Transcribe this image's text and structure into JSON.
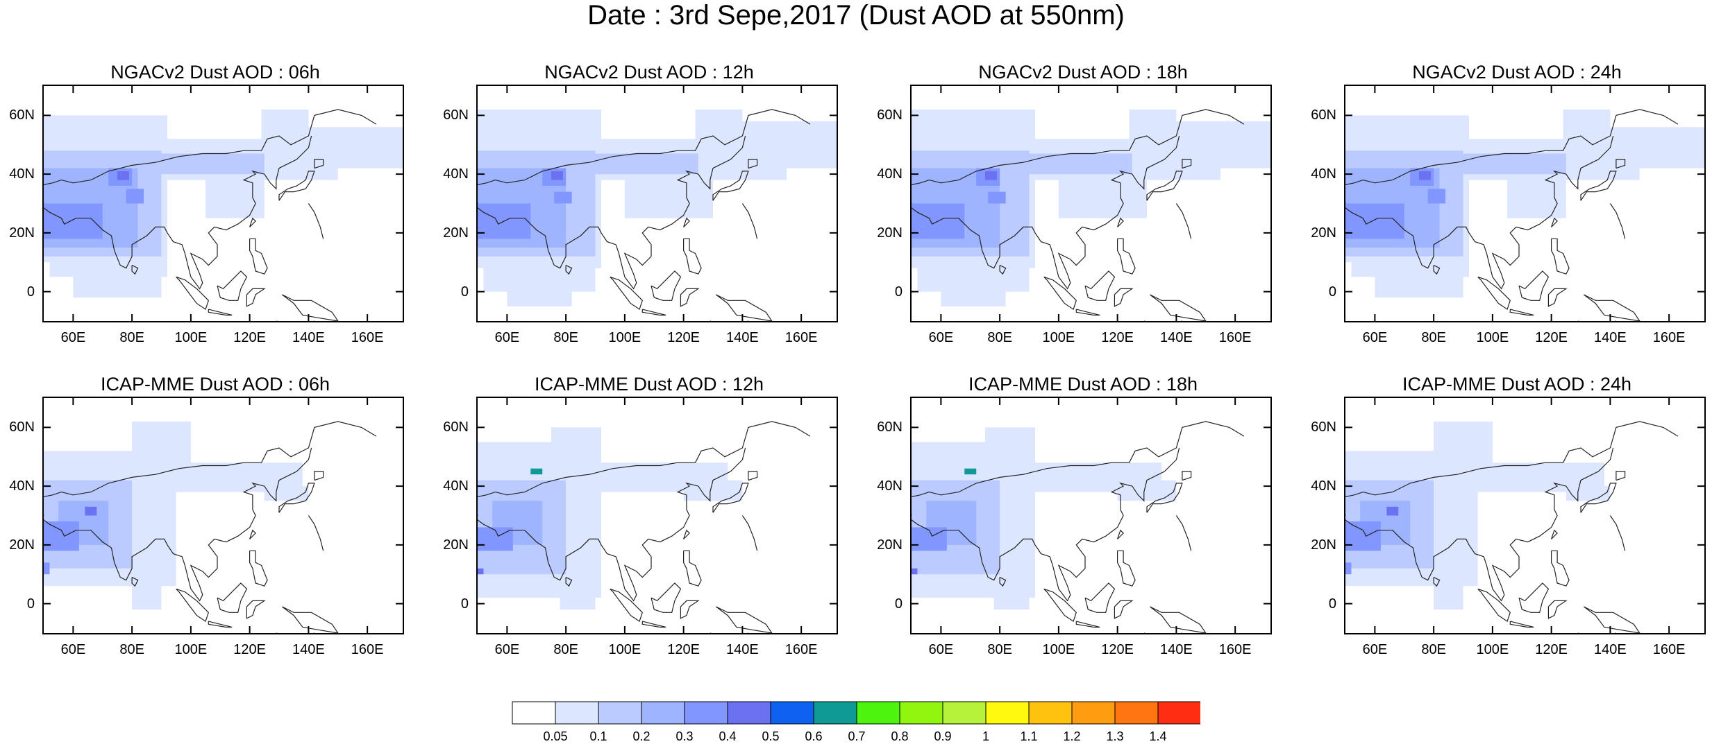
{
  "title": "Date : 3rd Sepe,2017 (Dust AOD at 550nm)",
  "panels": [
    {
      "title": "NGACv2 Dust AOD : 06h",
      "model": "NGACv2",
      "hour": "06h"
    },
    {
      "title": "NGACv2 Dust AOD : 12h",
      "model": "NGACv2",
      "hour": "12h"
    },
    {
      "title": "NGACv2 Dust AOD : 18h",
      "model": "NGACv2",
      "hour": "18h"
    },
    {
      "title": "NGACv2 Dust AOD : 24h",
      "model": "NGACv2",
      "hour": "24h"
    },
    {
      "title": "ICAP-MME Dust AOD : 06h",
      "model": "ICAP-MME",
      "hour": "06h"
    },
    {
      "title": "ICAP-MME Dust AOD : 12h",
      "model": "ICAP-MME",
      "hour": "12h"
    },
    {
      "title": "ICAP-MME Dust AOD : 18h",
      "model": "ICAP-MME",
      "hour": "18h"
    },
    {
      "title": "ICAP-MME Dust AOD : 24h",
      "model": "ICAP-MME",
      "hour": "24h"
    }
  ],
  "axes": {
    "lon_range": [
      50,
      172
    ],
    "lat_range": [
      -10,
      70
    ],
    "lon_ticks": [
      "60E",
      "80E",
      "100E",
      "120E",
      "140E",
      "160E"
    ],
    "lat_ticks": [
      "60N",
      "40N",
      "20N",
      "0"
    ]
  },
  "colorbar": {
    "colors": [
      "#ffffff",
      "#dde6ff",
      "#bccbff",
      "#9fb4ff",
      "#8296ff",
      "#6a72f2",
      "#0f62f0",
      "#0f9a96",
      "#4cf40e",
      "#90f50f",
      "#b6f23a",
      "#fff90f",
      "#ffc20f",
      "#ff9c0f",
      "#ff750f",
      "#ff2d12"
    ],
    "labels": [
      "0.05",
      "0.1",
      "0.2",
      "0.3",
      "0.4",
      "0.5",
      "0.6",
      "0.7",
      "0.8",
      "0.9",
      "1",
      "1.1",
      "1.2",
      "1.3",
      "1.4"
    ]
  }
}
